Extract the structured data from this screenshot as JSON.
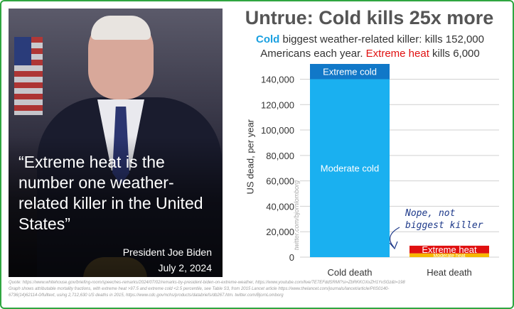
{
  "photo": {
    "quote": "“Extreme heat is the number one weather-related killer in the United States”",
    "speaker": "President Joe Biden",
    "date": "July 2, 2024"
  },
  "header": {
    "title": "Untrue: Cold kills 25x more",
    "sub_cold": "Cold",
    "sub_mid": " biggest weather-related killer: kills 152,000 Americans each year. ",
    "sub_heat": "Extreme heat",
    "sub_end": " kills 6,000"
  },
  "chart_data": {
    "type": "bar",
    "stacked": true,
    "categories": [
      "Cold death",
      "Heat death"
    ],
    "series": [
      {
        "name": "Moderate cold",
        "values": [
          140000,
          0
        ],
        "color": "#1ab0f0"
      },
      {
        "name": "Extreme cold",
        "values": [
          12000,
          0
        ],
        "color": "#1178c8"
      },
      {
        "name": "Moderate heat",
        "values": [
          0,
          3000
        ],
        "color": "#f5b800"
      },
      {
        "name": "Extreme heat",
        "values": [
          0,
          6000
        ],
        "color": "#e01010"
      }
    ],
    "ylabel": "US dead, per year",
    "ylim": [
      0,
      152000
    ],
    "yticks": [
      0,
      20000,
      40000,
      60000,
      80000,
      100000,
      120000,
      140000
    ],
    "ytick_labels": [
      "0",
      "20,000",
      "40,000",
      "60,000",
      "80,000",
      "100,000",
      "120,000",
      "140,000"
    ],
    "grid": true,
    "annotation": "Nope, not biggest killer",
    "credit": "twitter.com/bjornlomborg"
  },
  "footnote": {
    "line1": "Quote: https://www.whitehouse.gov/briefing-room/speeches-remarks/2024/07/02/remarks-by-president-biden-on-extreme-weather, https://www.youtube.com/live/TE7EFddSRMI?si=ZbRKKOXxZH1YvSGz&t=198",
    "line2": "Graph shows attributable mortality fractions, with extreme heat >97.5 and extreme cold <2.5 percentile, see Table S3, from 2015 Lancet article https://www.thelancet.com/journals/lancet/article/PIIS0140-",
    "line3": "6736(14)62114-0/fulltext, using 2,712,630 US deaths in 2015, https://www.cdc.gov/nchs/products/databriefs/db267.htm. twitter.com/BjornLomborg"
  }
}
